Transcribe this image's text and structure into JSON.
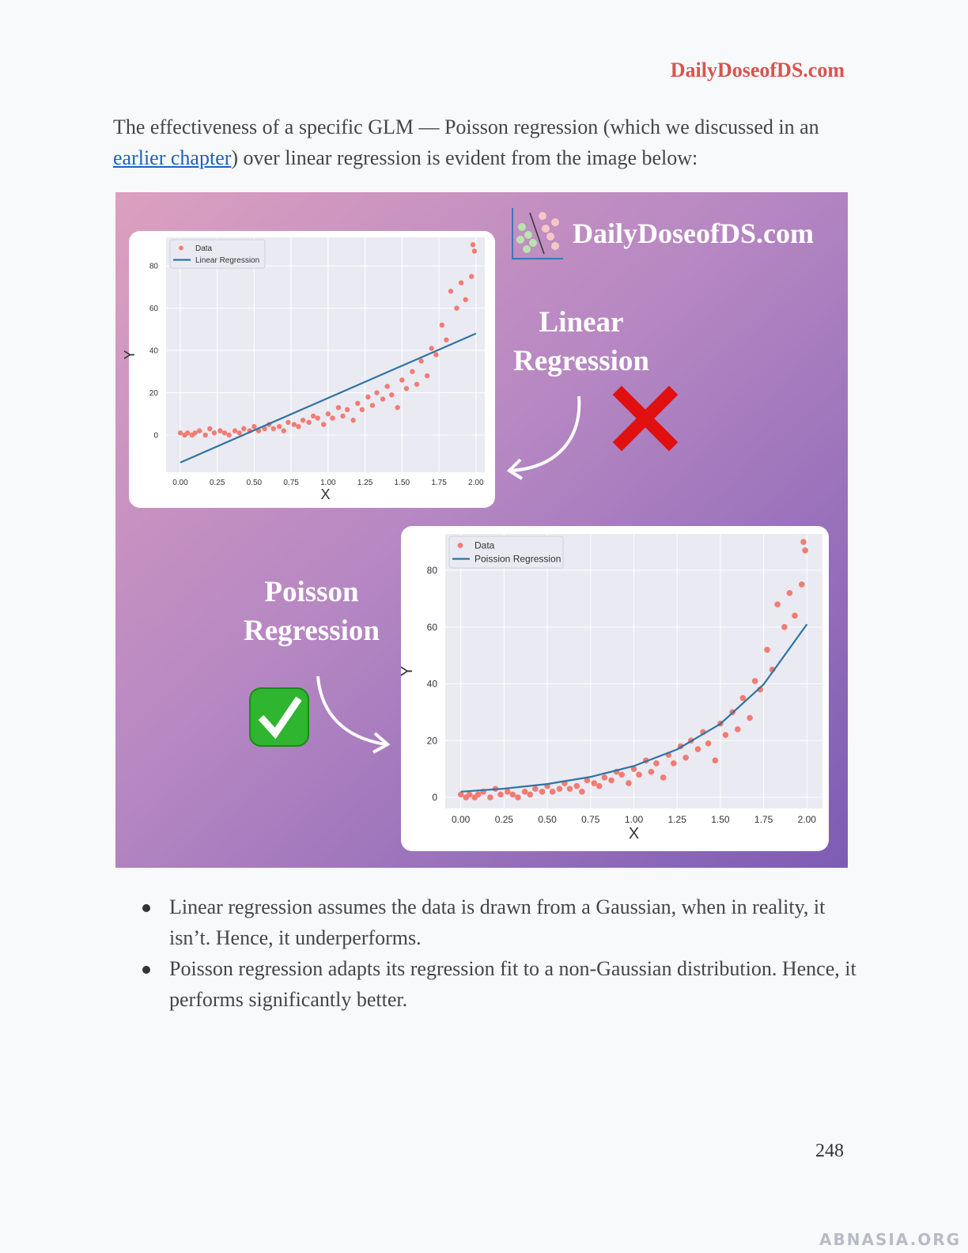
{
  "header": {
    "site": "DailyDoseofDS.com"
  },
  "intro": {
    "before": "The effectiveness of a specific GLM — Poisson regression (which we discussed in an ",
    "link": "earlier chapter",
    "after": ") over linear regression is evident from the image below:"
  },
  "figure": {
    "brand": "DailyDoseofDS.com",
    "label_linear": "Linear Regression",
    "label_poisson": "Poisson Regression",
    "charts": [
      {
        "type": "scatter",
        "x_label": "X",
        "y_label": "Y",
        "grid": true,
        "legend": "upper left",
        "xlim": [
          -0.096,
          2.06
        ],
        "ylim": [
          -17.6,
          93.5
        ],
        "xticks": [
          {
            "value": 0,
            "label": "0.00"
          },
          {
            "value": 0.25,
            "label": "0.25"
          },
          {
            "value": 0.5,
            "label": "0.50"
          },
          {
            "value": 0.75,
            "label": "0.75"
          },
          {
            "value": 1,
            "label": "1.00"
          },
          {
            "value": 1.25,
            "label": "1.25"
          },
          {
            "value": 1.5,
            "label": "1.50"
          },
          {
            "value": 1.75,
            "label": "1.75"
          },
          {
            "value": 2,
            "label": "2.00"
          }
        ],
        "yticks": [
          0,
          20,
          40,
          60,
          80
        ],
        "series": [
          {
            "name": "Data",
            "style": "markers",
            "color": "#f27c73",
            "x": [
              0.0,
              0.03,
              0.05,
              0.08,
              0.1,
              0.13,
              0.17,
              0.2,
              0.23,
              0.27,
              0.3,
              0.33,
              0.37,
              0.4,
              0.43,
              0.47,
              0.5,
              0.53,
              0.57,
              0.6,
              0.63,
              0.67,
              0.7,
              0.73,
              0.77,
              0.8,
              0.83,
              0.87,
              0.9,
              0.93,
              0.97,
              1.0,
              1.03,
              1.07,
              1.1,
              1.13,
              1.17,
              1.2,
              1.23,
              1.27,
              1.3,
              1.33,
              1.37,
              1.4,
              1.43,
              1.47,
              1.5,
              1.53,
              1.57,
              1.6,
              1.63,
              1.67,
              1.7,
              1.73,
              1.77,
              1.8,
              1.83,
              1.87,
              1.9,
              1.93,
              1.97,
              1.98,
              1.99
            ],
            "values": [
              1,
              0,
              1,
              0,
              1,
              2,
              0,
              3,
              1,
              2,
              1,
              0,
              2,
              1,
              3,
              2,
              4,
              2,
              3,
              5,
              3,
              4,
              2,
              6,
              5,
              4,
              7,
              6,
              9,
              8,
              5,
              10,
              8,
              13,
              9,
              12,
              7,
              15,
              12,
              18,
              14,
              20,
              17,
              23,
              19,
              13,
              26,
              22,
              30,
              24,
              35,
              28,
              41,
              38,
              52,
              45,
              68,
              60,
              72,
              64,
              75,
              90,
              87
            ]
          },
          {
            "name": "Linear Regression",
            "style": "line",
            "color": "#2e74a3",
            "x": [
              0,
              2
            ],
            "values": [
              -13,
              48
            ]
          }
        ]
      },
      {
        "type": "scatter",
        "x_label": "X",
        "y_label": "Y",
        "grid": true,
        "legend": "upper left",
        "xlim": [
          -0.09,
          2.09
        ],
        "ylim": [
          -3.9,
          92.8
        ],
        "xticks": [
          {
            "value": 0,
            "label": "0.00"
          },
          {
            "value": 0.25,
            "label": "0.25"
          },
          {
            "value": 0.5,
            "label": "0.50"
          },
          {
            "value": 0.75,
            "label": "0.75"
          },
          {
            "value": 1,
            "label": "1.00"
          },
          {
            "value": 1.25,
            "label": "1.25"
          },
          {
            "value": 1.5,
            "label": "1.50"
          },
          {
            "value": 1.75,
            "label": "1.75"
          },
          {
            "value": 2,
            "label": "2.00"
          }
        ],
        "yticks": [
          0,
          20,
          40,
          60,
          80
        ],
        "series": [
          {
            "name": "Data",
            "style": "markers",
            "color": "#f27c73",
            "x": [
              0.0,
              0.03,
              0.05,
              0.08,
              0.1,
              0.13,
              0.17,
              0.2,
              0.23,
              0.27,
              0.3,
              0.33,
              0.37,
              0.4,
              0.43,
              0.47,
              0.5,
              0.53,
              0.57,
              0.6,
              0.63,
              0.67,
              0.7,
              0.73,
              0.77,
              0.8,
              0.83,
              0.87,
              0.9,
              0.93,
              0.97,
              1.0,
              1.03,
              1.07,
              1.1,
              1.13,
              1.17,
              1.2,
              1.23,
              1.27,
              1.3,
              1.33,
              1.37,
              1.4,
              1.43,
              1.47,
              1.5,
              1.53,
              1.57,
              1.6,
              1.63,
              1.67,
              1.7,
              1.73,
              1.77,
              1.8,
              1.83,
              1.87,
              1.9,
              1.93,
              1.97,
              1.98,
              1.99
            ],
            "values": [
              1,
              0,
              1,
              0,
              1,
              2,
              0,
              3,
              1,
              2,
              1,
              0,
              2,
              1,
              3,
              2,
              4,
              2,
              3,
              5,
              3,
              4,
              2,
              6,
              5,
              4,
              7,
              6,
              9,
              8,
              5,
              10,
              8,
              13,
              9,
              12,
              7,
              15,
              12,
              18,
              14,
              20,
              17,
              23,
              19,
              13,
              26,
              22,
              30,
              24,
              35,
              28,
              41,
              38,
              52,
              45,
              68,
              60,
              72,
              64,
              75,
              90,
              87
            ]
          },
          {
            "name": "Poission Regression",
            "style": "line",
            "color": "#2e74a3",
            "x": [
              0,
              0.25,
              0.5,
              0.75,
              1,
              1.25,
              1.5,
              1.75,
              2
            ],
            "values": [
              2,
              3.07,
              4.7,
              7.21,
              11.05,
              16.9,
              25.9,
              39.8,
              61
            ]
          }
        ]
      }
    ]
  },
  "bullets": [
    "Linear regression assumes the data is drawn from a Gaussian, when in reality, it isn’t. Hence, it underperforms.",
    "Poisson regression adapts its regression fit to a non-Gaussian distribution. Hence, it performs significantly better."
  ],
  "page_number": "248",
  "watermark": "ABNASIA.ORG"
}
